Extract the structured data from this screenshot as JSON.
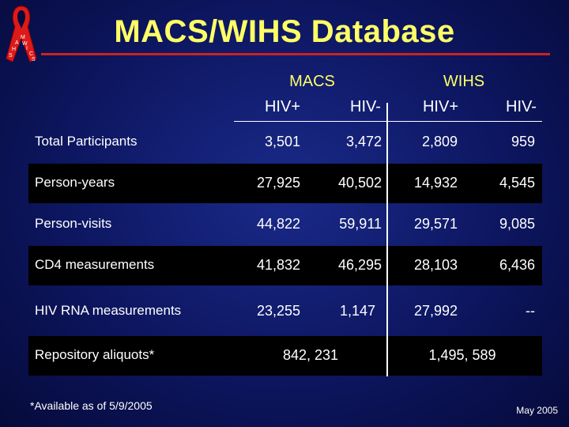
{
  "logo": {
    "letters": "MWAIHCSS"
  },
  "title": "MACS/WIHS Database",
  "groups": {
    "macs": "MACS",
    "wihs": "WIHS"
  },
  "columns": [
    "HIV+",
    "HIV-",
    "HIV+",
    "HIV-"
  ],
  "rows": [
    {
      "label": "Total Participants",
      "values": [
        "3,501",
        "3,472",
        "2,809",
        "959"
      ]
    },
    {
      "label": "Person-years",
      "values": [
        "27,925",
        "40,502",
        "14,932",
        "4,545"
      ]
    },
    {
      "label": "Person-visits",
      "values": [
        "44,822",
        "59,911",
        "29,571",
        "9,085"
      ]
    },
    {
      "label": "CD4 measurements",
      "values": [
        "41,832",
        "46,295",
        "28,103",
        "6,436"
      ]
    },
    {
      "label": "HIV RNA measurements",
      "values": [
        "23,255",
        "1,147",
        "27,992",
        "--"
      ]
    },
    {
      "label": "Repository aliquots*",
      "macs_total": "842, 231",
      "wihs_total": "1,495, 589"
    }
  ],
  "footnote": "*Available as of 5/9/2005",
  "date": "May 2005",
  "colors": {
    "title": "#ffff66",
    "rule": "#cc2222",
    "ribbon": "#dd1a1a",
    "band": "#000000"
  }
}
